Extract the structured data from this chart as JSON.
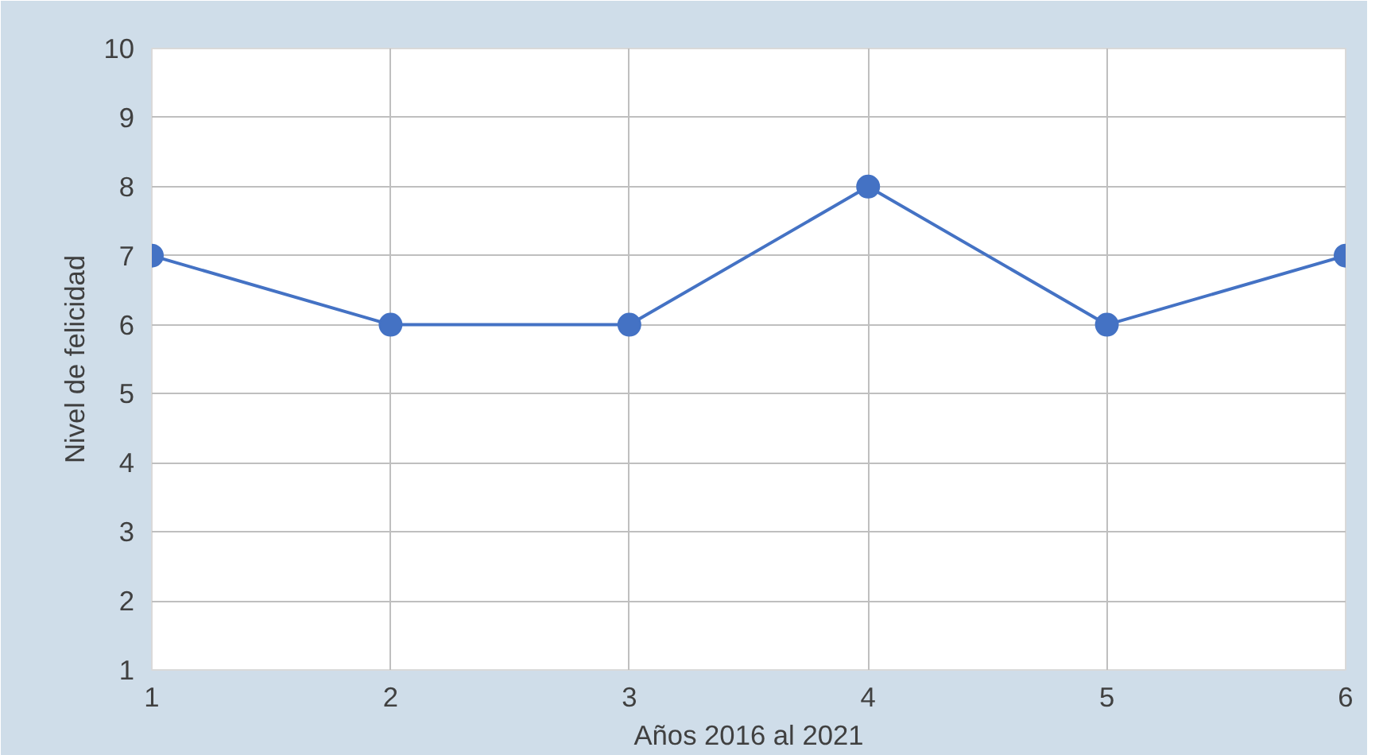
{
  "chart_data": {
    "type": "line",
    "xlabel": "Años 2016 al 2021",
    "ylabel": "Nivel de felicidad",
    "x": [
      1,
      2,
      3,
      4,
      5,
      6
    ],
    "series": [
      {
        "color": "#4472c4",
        "values": [
          7,
          6,
          6,
          8,
          6,
          7
        ]
      }
    ],
    "xlim": [
      1,
      6
    ],
    "xticks": [
      1,
      2,
      3,
      4,
      5,
      6
    ],
    "ylim": [
      1,
      10
    ],
    "yticks": [
      1,
      2,
      3,
      4,
      5,
      6,
      7,
      8,
      9,
      10
    ],
    "grid": true,
    "marker": "circle",
    "line_style": "solid"
  }
}
